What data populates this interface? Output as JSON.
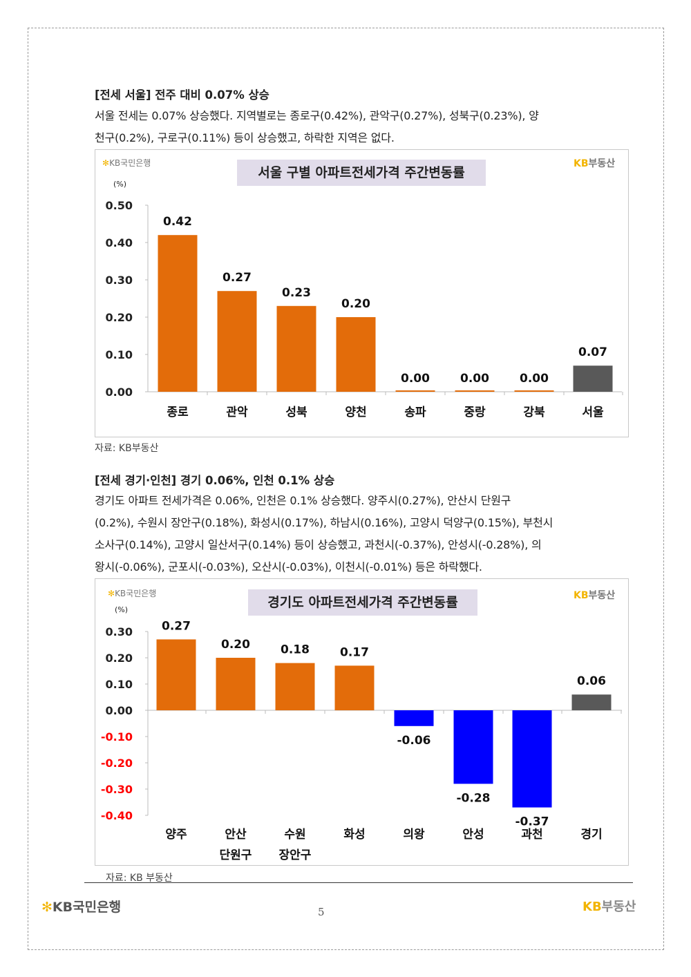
{
  "section1": {
    "heading": "[전세 서울] 전주 대비 0.07% 상승",
    "lines": [
      "서울 전세는 0.07% 상승했다. 지역별로는 종로구(0.42%), 관악구(0.27%), 성북구(0.23%), 양",
      "천구(0.2%), 구로구(0.11%) 등이 상승했고, 하락한 지역은 없다."
    ],
    "source": "자료: KB부동산"
  },
  "section2": {
    "heading": "[전세 경기·인천] 경기 0.06%, 인천 0.1% 상승",
    "lines": [
      "경기도 아파트 전세가격은 0.06%, 인천은 0.1% 상승했다. 양주시(0.27%), 안산시 단원구",
      "(0.2%), 수원시 장안구(0.18%), 화성시(0.17%), 하남시(0.16%), 고양시 덕양구(0.15%), 부천시",
      "소사구(0.14%), 고양시 일산서구(0.14%) 등이 상승했고, 과천시(-0.37%), 안성시(-0.28%), 의",
      "왕시(-0.06%), 군포시(-0.03%), 오산시(-0.03%), 이천시(-0.01%) 등은 하락했다."
    ],
    "source": "자료: KB 부동산"
  },
  "logos": {
    "bank_mark": "✻",
    "bank": "KB국민은행",
    "re_kb": "KB",
    "re": "부동산"
  },
  "footer": {
    "page": "5"
  },
  "colors": {
    "up": "#E36C0A",
    "down": "#0000FF",
    "total": "#595959",
    "neg_tick": "#FF0000"
  },
  "chart_data": [
    {
      "type": "bar",
      "title": "서울 구별 아파트전세가격 주간변동률",
      "unit": "(%)",
      "categories": [
        "종로",
        "관악",
        "성북",
        "양천",
        "송파",
        "중랑",
        "강북",
        "서울"
      ],
      "values": [
        0.42,
        0.27,
        0.23,
        0.2,
        0.0,
        0.0,
        0.0,
        0.07
      ],
      "labels": [
        "0.42",
        "0.27",
        "0.23",
        "0.20",
        "0.00",
        "0.00",
        "0.00",
        "0.07"
      ],
      "yticks": [
        "0.50",
        "0.40",
        "0.30",
        "0.20",
        "0.10",
        "0.00"
      ],
      "ylim": [
        0,
        0.5
      ]
    },
    {
      "type": "bar",
      "title": "경기도 아파트전세가격 주간변동률",
      "unit": "(%)",
      "categories": [
        [
          "양주"
        ],
        [
          "안산",
          "단원구"
        ],
        [
          "수원",
          "장안구"
        ],
        [
          "화성"
        ],
        [
          "의왕"
        ],
        [
          "안성"
        ],
        [
          "과천"
        ],
        [
          "경기"
        ]
      ],
      "values": [
        0.27,
        0.2,
        0.18,
        0.17,
        -0.06,
        -0.28,
        -0.37,
        0.06
      ],
      "labels": [
        "0.27",
        "0.20",
        "0.18",
        "0.17",
        "-0.06",
        "-0.28",
        "-0.37",
        "0.06"
      ],
      "yticks": [
        "0.30",
        "0.20",
        "0.10",
        "0.00",
        "-0.10",
        "-0.20",
        "-0.30",
        "-0.40"
      ],
      "ylim": [
        -0.4,
        0.3
      ]
    }
  ]
}
